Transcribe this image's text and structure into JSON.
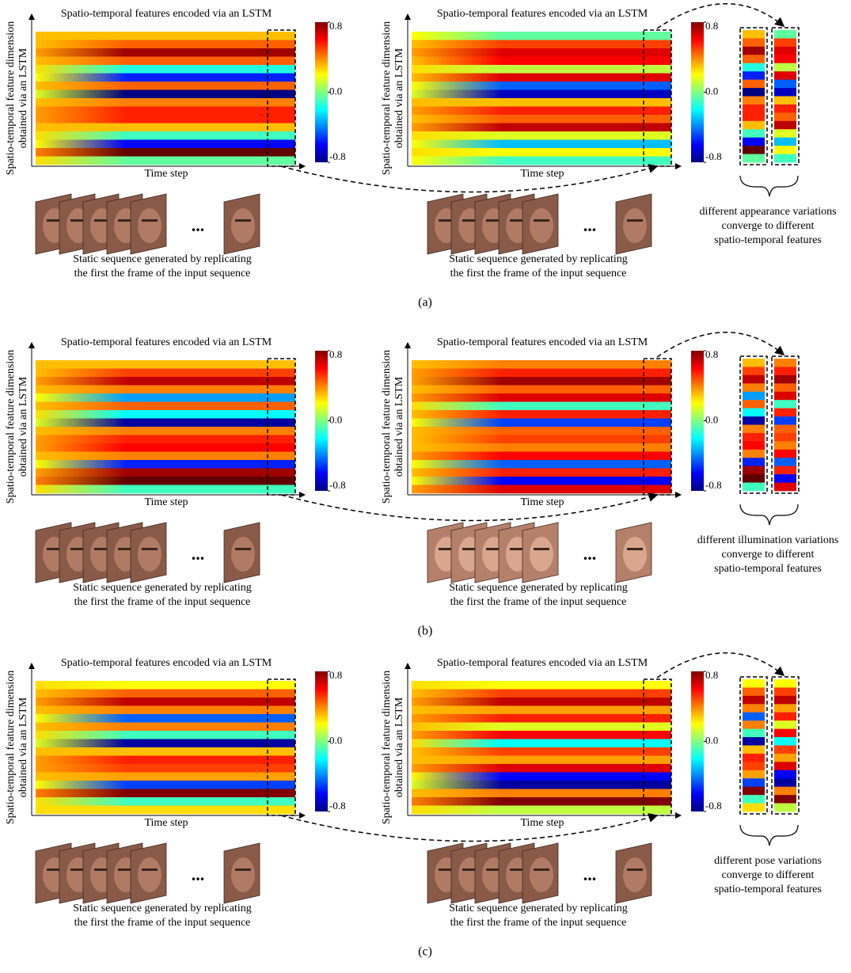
{
  "figure": {
    "panels": [
      {
        "label": "(a)",
        "side_text": [
          "different appearance variations",
          "converge to different",
          "spatio-temporal features"
        ],
        "heatmaps": [
          {
            "title": "Spatio-temporal features encoded via an LSTM",
            "y_label": [
              "Spatio-temporal feature dimension",
              "obtained via an LSTM"
            ],
            "x_label": "Time step",
            "caption": [
              "Static sequence generated by replicating",
              "the first the frame of the input sequence"
            ],
            "ellipsis": "...",
            "clim": [
              -0.8,
              0.8
            ],
            "cticks": [
              0.8,
              {
                "value": 0,
                "label": "0.0"
              },
              -0.8
            ],
            "start": [
              0.3,
              0.3,
              0.35,
              0.3,
              0.25,
              0.2,
              0.3,
              0.15,
              0.3,
              0.35,
              0.35,
              0.3,
              0.25,
              0.2,
              0.4,
              0.25
            ],
            "end": [
              0.3,
              0.45,
              0.75,
              0.45,
              -0.15,
              -0.55,
              0.45,
              -0.8,
              0.4,
              0.55,
              0.55,
              0.3,
              -0.1,
              -0.6,
              0.85,
              -0.05
            ]
          },
          {
            "title": "Spatio-temporal features encoded via an LSTM",
            "y_label": [
              "Spatio-temporal feature dimension",
              "obtained via an LSTM"
            ],
            "x_label": "Time step",
            "caption": [
              "Static sequence generated by replicating",
              "the first the frame of the input sequence"
            ],
            "ellipsis": "...",
            "clim": [
              -0.8,
              0.8
            ],
            "cticks": [
              0.8,
              {
                "value": 0,
                "label": "0.0"
              },
              -0.8
            ],
            "start": [
              0.2,
              0.3,
              0.35,
              0.3,
              0.25,
              0.3,
              0.2,
              0.15,
              0.3,
              0.35,
              0.3,
              0.35,
              0.25,
              0.2,
              0.25,
              0.2
            ],
            "end": [
              -0.05,
              0.5,
              0.65,
              0.6,
              0.1,
              0.65,
              -0.45,
              -0.7,
              0.3,
              0.55,
              0.45,
              0.7,
              0.15,
              -0.3,
              0.2,
              -0.1
            ]
          }
        ]
      },
      {
        "label": "(b)",
        "side_text": [
          "different illumination variations",
          "converge to different",
          "spatio-temporal features"
        ],
        "heatmaps": [
          {
            "title": "Spatio-temporal features encoded via an LSTM",
            "y_label": [
              "Spatio-temporal feature dimension",
              "obtained via an LSTM"
            ],
            "x_label": "Time step",
            "caption": [
              "Static sequence generated by replicating",
              "the first the frame of the input sequence"
            ],
            "ellipsis": "...",
            "clim": [
              -0.8,
              0.8
            ],
            "cticks": [
              0.8,
              {
                "value": 0,
                "label": "0.0"
              },
              -0.8
            ],
            "start": [
              0.3,
              0.3,
              0.35,
              0.3,
              0.2,
              0.3,
              0.25,
              0.15,
              0.3,
              0.35,
              0.35,
              0.3,
              0.2,
              0.35,
              0.4,
              0.25
            ],
            "end": [
              0.3,
              0.5,
              0.7,
              0.4,
              -0.35,
              0.45,
              -0.2,
              -0.75,
              0.4,
              0.55,
              0.6,
              0.4,
              -0.55,
              0.75,
              0.85,
              -0.1
            ]
          },
          {
            "title": "Spatio-temporal features encoded via an LSTM",
            "y_label": [
              "Spatio-temporal feature dimension",
              "obtained via an LSTM"
            ],
            "x_label": "Time step",
            "caption": [
              "Static sequence generated by replicating",
              "the first the frame of the input sequence"
            ],
            "ellipsis": "...",
            "clim": [
              -0.8,
              0.8
            ],
            "cticks": [
              0.8,
              {
                "value": 0,
                "label": "0.0"
              },
              -0.8
            ],
            "start": [
              0.3,
              0.35,
              0.35,
              0.3,
              0.35,
              0.25,
              0.3,
              0.2,
              0.3,
              0.3,
              0.3,
              0.35,
              0.2,
              0.3,
              0.2,
              0.35
            ],
            "end": [
              0.4,
              0.55,
              0.75,
              0.45,
              0.65,
              -0.1,
              0.55,
              -0.5,
              0.45,
              0.5,
              0.4,
              0.6,
              -0.45,
              0.55,
              -0.6,
              0.65
            ]
          }
        ]
      },
      {
        "label": "(c)",
        "side_text": [
          "different pose variations",
          "converge to different",
          "spatio-temporal features"
        ],
        "heatmaps": [
          {
            "title": "Spatio-temporal features encoded via an LSTM",
            "y_label": [
              "Spatio-temporal feature dimension",
              "obtained via an LSTM"
            ],
            "x_label": "Time step",
            "caption": [
              "Static sequence generated by replicating",
              "the first the frame of the input sequence"
            ],
            "ellipsis": "...",
            "clim": [
              -0.8,
              0.8
            ],
            "cticks": [
              0.8,
              {
                "value": 0,
                "label": "0.0"
              },
              -0.8
            ],
            "start": [
              0.25,
              0.3,
              0.35,
              0.3,
              0.2,
              0.3,
              0.25,
              0.15,
              0.3,
              0.35,
              0.35,
              0.3,
              0.2,
              0.4,
              0.25,
              0.25
            ],
            "end": [
              0.2,
              0.45,
              0.7,
              0.4,
              -0.45,
              0.4,
              -0.1,
              -0.75,
              0.3,
              0.55,
              0.5,
              0.35,
              -0.5,
              0.8,
              -0.1,
              0.25
            ]
          },
          {
            "title": "Spatio-temporal features encoded via an LSTM",
            "y_label": [
              "Spatio-temporal feature dimension",
              "obtained via an LSTM"
            ],
            "x_label": "Time step",
            "caption": [
              "Static sequence generated by replicating",
              "the first the frame of the input sequence"
            ],
            "ellipsis": "...",
            "clim": [
              -0.8,
              0.8
            ],
            "cticks": [
              0.8,
              {
                "value": 0,
                "label": "0.0"
              },
              -0.8
            ],
            "start": [
              0.25,
              0.3,
              0.35,
              0.3,
              0.35,
              0.3,
              0.35,
              0.25,
              0.3,
              0.3,
              0.35,
              0.2,
              0.15,
              0.3,
              0.4,
              0.25
            ],
            "end": [
              0.2,
              0.5,
              0.7,
              0.35,
              0.55,
              0.15,
              0.6,
              -0.2,
              0.5,
              0.35,
              0.65,
              -0.6,
              -0.75,
              0.4,
              0.8,
              0.1
            ]
          }
        ]
      }
    ]
  }
}
